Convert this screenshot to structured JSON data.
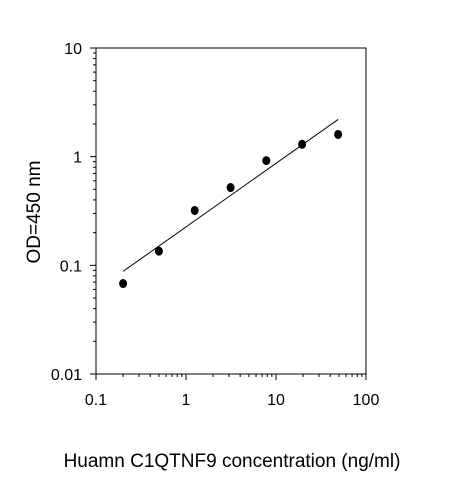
{
  "chart_data": {
    "type": "scatter",
    "title": "",
    "xlabel": "Huamn C1QTNF9 concentration (ng/ml)",
    "ylabel": "OD=450 nm",
    "x_scale": "log",
    "y_scale": "log",
    "xlim": [
      0.1,
      100
    ],
    "ylim": [
      0.01,
      10
    ],
    "x_ticks": [
      0.1,
      1,
      10,
      100
    ],
    "x_tick_labels": [
      "0.1",
      "1",
      "10",
      "100"
    ],
    "y_ticks": [
      0.01,
      0.1,
      1,
      10
    ],
    "y_tick_labels": [
      "0.01",
      "0.1",
      "1",
      "10"
    ],
    "grid": false,
    "legend": "none",
    "series": [
      {
        "points": [
          {
            "x": 0.2,
            "y": 0.068
          },
          {
            "x": 0.5,
            "y": 0.135
          },
          {
            "x": 1.25,
            "y": 0.32
          },
          {
            "x": 3.13,
            "y": 0.52
          },
          {
            "x": 7.8,
            "y": 0.92
          },
          {
            "x": 19.5,
            "y": 1.3
          },
          {
            "x": 49,
            "y": 1.6
          }
        ]
      }
    ],
    "fit_line": {
      "x": [
        0.2,
        49
      ],
      "y": [
        0.088,
        2.2
      ]
    },
    "colors": {
      "points": "#000000",
      "line": "#000000",
      "axes": "#000000"
    }
  }
}
